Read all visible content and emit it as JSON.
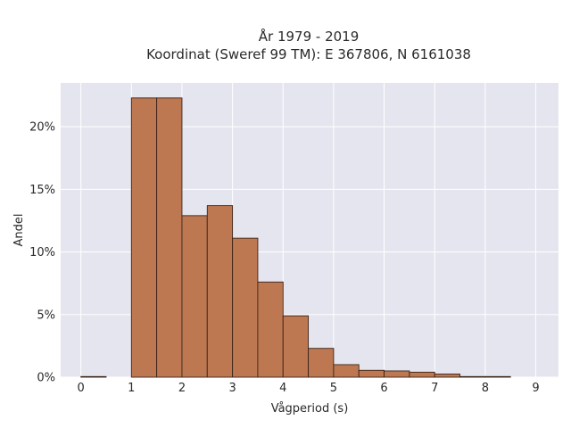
{
  "chart_data": {
    "type": "bar",
    "title_line1": "År 1979 - 2019",
    "title_line2": "Koordinat (Sweref 99 TM): E 367806, N 6161038",
    "xlabel": "Vågperiod (s)",
    "ylabel": "Andel",
    "bin_width": 0.5,
    "bins": [
      {
        "start": 0.0,
        "value": 0.05
      },
      {
        "start": 0.5,
        "value": 0.0
      },
      {
        "start": 1.0,
        "value": 22.3
      },
      {
        "start": 1.5,
        "value": 22.3
      },
      {
        "start": 2.0,
        "value": 12.9
      },
      {
        "start": 2.5,
        "value": 13.7
      },
      {
        "start": 3.0,
        "value": 11.1
      },
      {
        "start": 3.5,
        "value": 7.6
      },
      {
        "start": 4.0,
        "value": 4.9
      },
      {
        "start": 4.5,
        "value": 2.3
      },
      {
        "start": 5.0,
        "value": 1.0
      },
      {
        "start": 5.5,
        "value": 0.55
      },
      {
        "start": 6.0,
        "value": 0.5
      },
      {
        "start": 6.5,
        "value": 0.4
      },
      {
        "start": 7.0,
        "value": 0.25
      },
      {
        "start": 7.5,
        "value": 0.05
      },
      {
        "start": 8.0,
        "value": 0.05
      }
    ],
    "xlim": [
      -0.4,
      9.45
    ],
    "ylim": [
      0,
      23.5
    ],
    "xticks": [
      0,
      1,
      2,
      3,
      4,
      5,
      6,
      7,
      8,
      9
    ],
    "xtick_labels": [
      "0",
      "1",
      "2",
      "3",
      "4",
      "5",
      "6",
      "7",
      "8",
      "9"
    ],
    "yticks": [
      0,
      5,
      10,
      15,
      20
    ],
    "ytick_labels": [
      "0%",
      "5%",
      "10%",
      "15%",
      "20%"
    ],
    "grid": true,
    "colors": {
      "bar_fill": "#bd7852",
      "bar_edge": "#3a2418",
      "plot_background": "#e5e5ef",
      "grid": "#ffffff"
    }
  }
}
